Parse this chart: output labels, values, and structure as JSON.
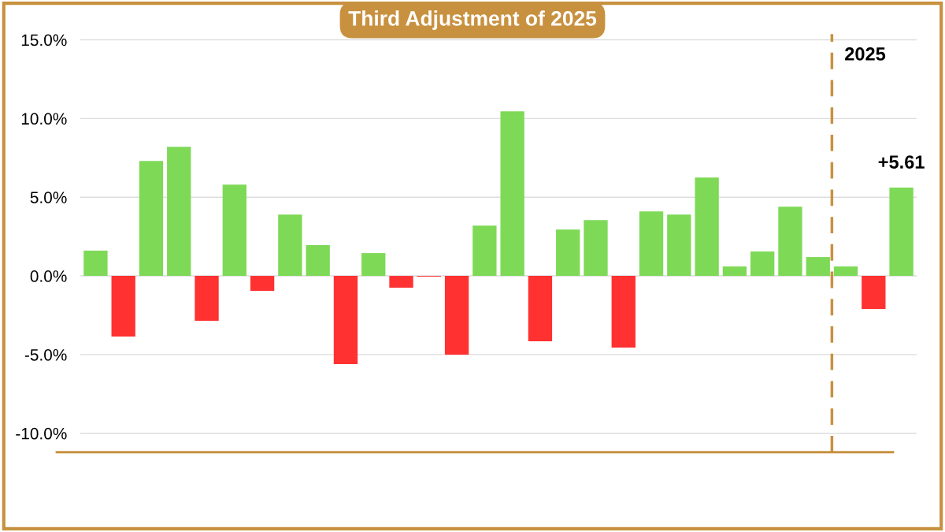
{
  "chart_data": {
    "type": "bar",
    "title": "Third Adjustment of 2025",
    "categories": [
      null,
      null,
      null,
      null,
      null,
      null,
      null,
      null,
      null,
      null,
      null,
      null,
      null,
      null,
      null,
      null,
      null,
      null,
      null,
      null,
      null,
      null,
      null,
      null,
      null,
      null,
      null,
      null,
      null,
      null
    ],
    "values": [
      1.6,
      -3.85,
      7.3,
      8.2,
      -2.85,
      5.8,
      -0.95,
      3.9,
      1.95,
      -5.6,
      1.45,
      -0.75,
      -0.05,
      -5.0,
      3.2,
      10.45,
      -4.15,
      2.95,
      3.55,
      -4.55,
      4.1,
      3.9,
      6.25,
      0.6,
      1.55,
      4.4,
      1.2,
      0.6,
      -2.1,
      5.61
    ],
    "colors": [
      "#7ed957",
      "#ff3131",
      "#7ed957",
      "#7ed957",
      "#ff3131",
      "#7ed957",
      "#ff3131",
      "#7ed957",
      "#7ed957",
      "#ff3131",
      "#7ed957",
      "#ff3131",
      "#ff3131",
      "#ff3131",
      "#7ed957",
      "#7ed957",
      "#ff3131",
      "#7ed957",
      "#7ed957",
      "#ff3131",
      "#7ed957",
      "#7ed957",
      "#7ed957",
      "#7ed957",
      "#7ed957",
      "#7ed957",
      "#7ed957",
      "#7ed957",
      "#ff3131",
      "#7ed957"
    ],
    "value_labels": [
      null,
      null,
      null,
      null,
      null,
      null,
      null,
      null,
      null,
      null,
      null,
      null,
      null,
      null,
      null,
      null,
      null,
      null,
      null,
      null,
      null,
      null,
      null,
      null,
      null,
      null,
      null,
      null,
      null,
      "+5.61"
    ],
    "ylim": [
      -11.2,
      15.5
    ],
    "yticks": [
      {
        "value": -10,
        "label": "-10.0%"
      },
      {
        "value": -5,
        "label": "-5.0%"
      },
      {
        "value": 0,
        "label": "0.0%"
      },
      {
        "value": 5,
        "label": "5.0%"
      },
      {
        "value": 10,
        "label": "10.0%"
      },
      {
        "value": 15,
        "label": "15.0%"
      }
    ],
    "annotations": [
      "2025"
    ],
    "grid": "y"
  }
}
